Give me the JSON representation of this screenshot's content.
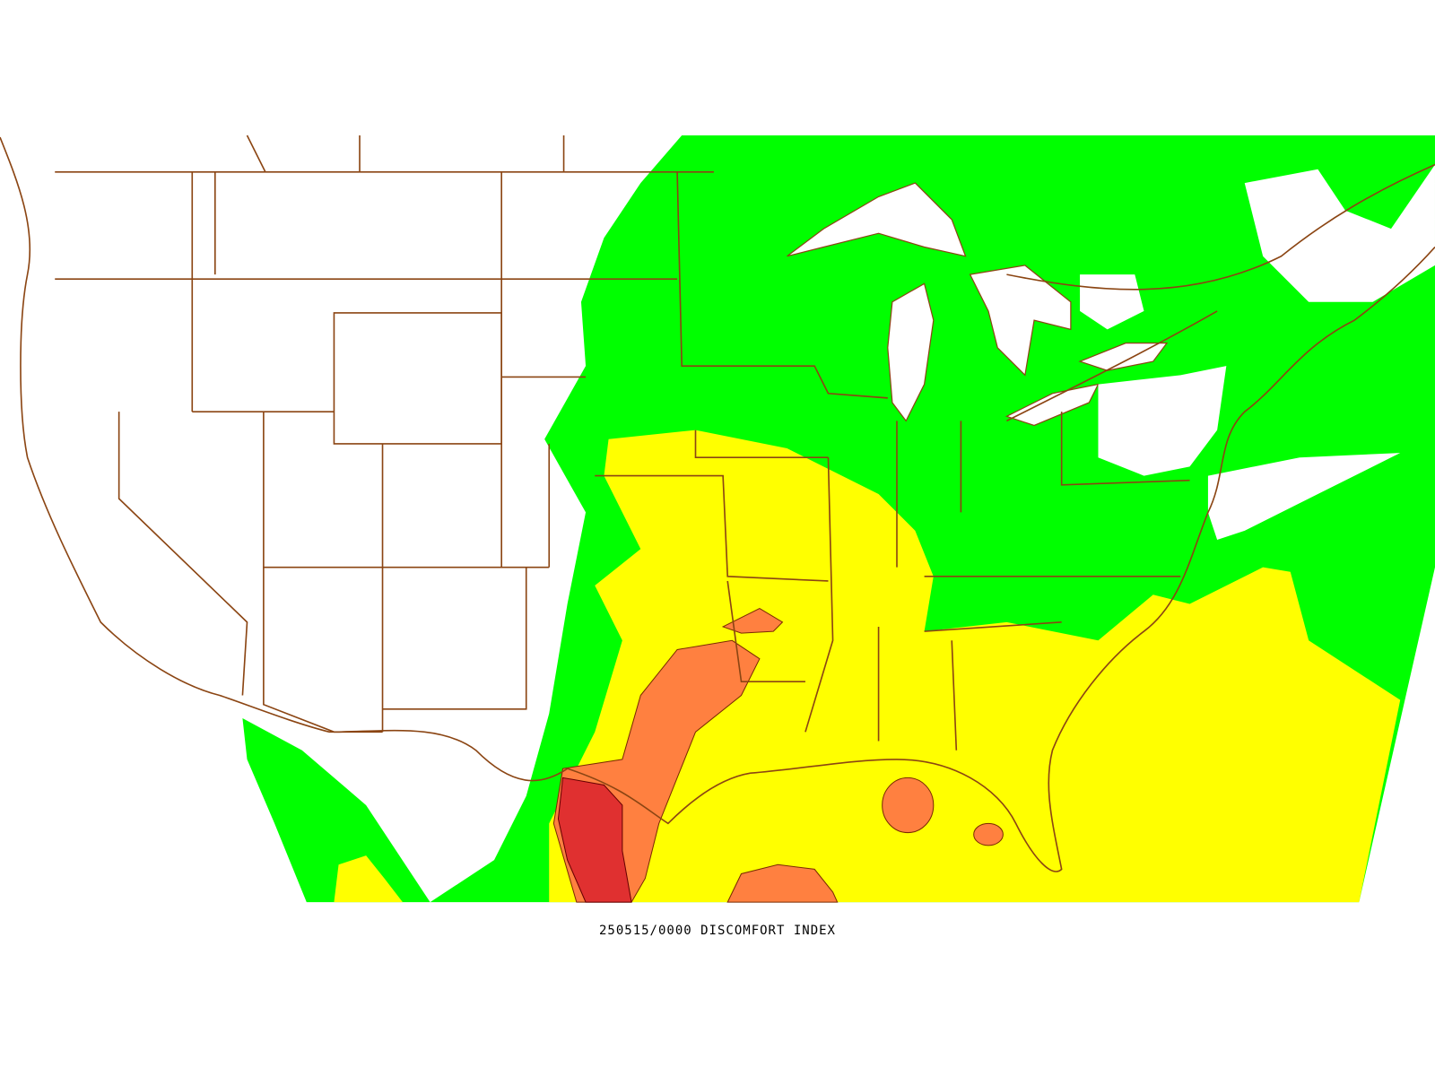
{
  "caption": "250515/0000 DISCOMFORT INDEX"
}
